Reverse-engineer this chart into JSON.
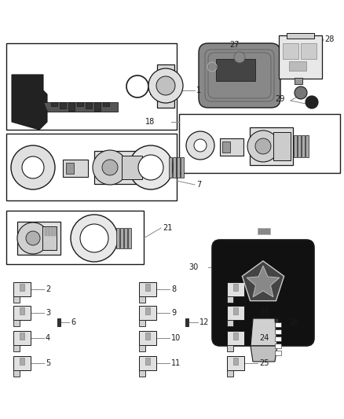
{
  "bg_color": "#ffffff",
  "border_color": "#1a1a1a",
  "line_color": "#888888",
  "text_color": "#1a1a1a",
  "fig_w": 4.38,
  "fig_h": 5.33,
  "dpi": 100
}
